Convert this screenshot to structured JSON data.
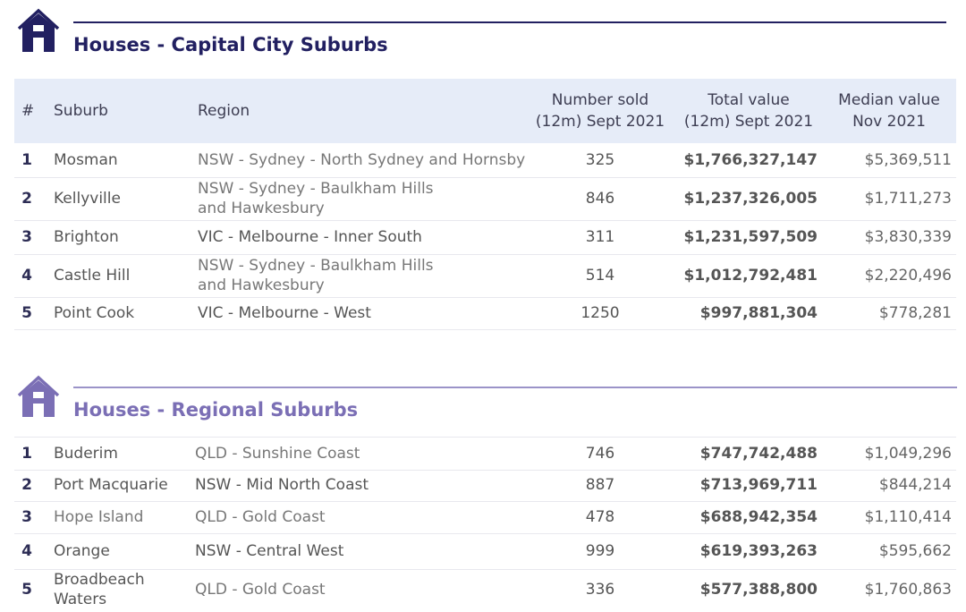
{
  "colors": {
    "primary": "#222061",
    "secondary": "#7b6fb5",
    "header_bg": "#e6ecf8"
  },
  "columns": {
    "num": "#",
    "suburb": "Suburb",
    "region": "Region",
    "sold_line1": "Number sold",
    "sold_line2": "(12m) Sept 2021",
    "total_line1": "Total value",
    "total_line2": "(12m) Sept 2021",
    "median_line1": "Median value",
    "median_line2": "Nov 2021"
  },
  "capital": {
    "icon": "house-icon",
    "title": "Houses - Capital City Suburbs",
    "rows": [
      {
        "rank": "1",
        "suburb": "Mosman",
        "region": "NSW - Sydney - North Sydney and Hornsby",
        "sold": "325",
        "total": "$1,766,327,147",
        "median": "$5,369,511"
      },
      {
        "rank": "2",
        "suburb": "Kellyville",
        "region": "NSW - Sydney - Baulkham Hills and Hawkesbury",
        "sold": "846",
        "total": "$1,237,326,005",
        "median": "$1,711,273"
      },
      {
        "rank": "3",
        "suburb": "Brighton",
        "region": "VIC - Melbourne - Inner South",
        "sold": "311",
        "total": "$1,231,597,509",
        "median": "$3,830,339"
      },
      {
        "rank": "4",
        "suburb": "Castle Hill",
        "region": "NSW - Sydney - Baulkham Hills and Hawkesbury",
        "sold": "514",
        "total": "$1,012,792,481",
        "median": "$2,220,496"
      },
      {
        "rank": "5",
        "suburb": "Point Cook",
        "region": "VIC - Melbourne - West",
        "sold": "1250",
        "total": "$997,881,304",
        "median": "$778,281"
      }
    ]
  },
  "regional": {
    "icon": "house-icon",
    "title": "Houses - Regional Suburbs",
    "rows": [
      {
        "rank": "1",
        "suburb": "Buderim",
        "region": "QLD - Sunshine Coast",
        "sold": "746",
        "total": "$747,742,488",
        "median": "$1,049,296"
      },
      {
        "rank": "2",
        "suburb": "Port Macquarie",
        "region": "NSW - Mid North Coast",
        "sold": "887",
        "total": "$713,969,711",
        "median": "$844,214"
      },
      {
        "rank": "3",
        "suburb": "Hope Island",
        "region": "QLD - Gold Coast",
        "sold": "478",
        "total": "$688,942,354",
        "median": "$1,110,414"
      },
      {
        "rank": "4",
        "suburb": "Orange",
        "region": "NSW - Central West",
        "sold": "999",
        "total": "$619,393,263",
        "median": "$595,662"
      },
      {
        "rank": "5",
        "suburb": "Broadbeach Waters",
        "region": "QLD - Gold Coast",
        "sold": "336",
        "total": "$577,388,800",
        "median": "$1,760,863"
      }
    ]
  }
}
